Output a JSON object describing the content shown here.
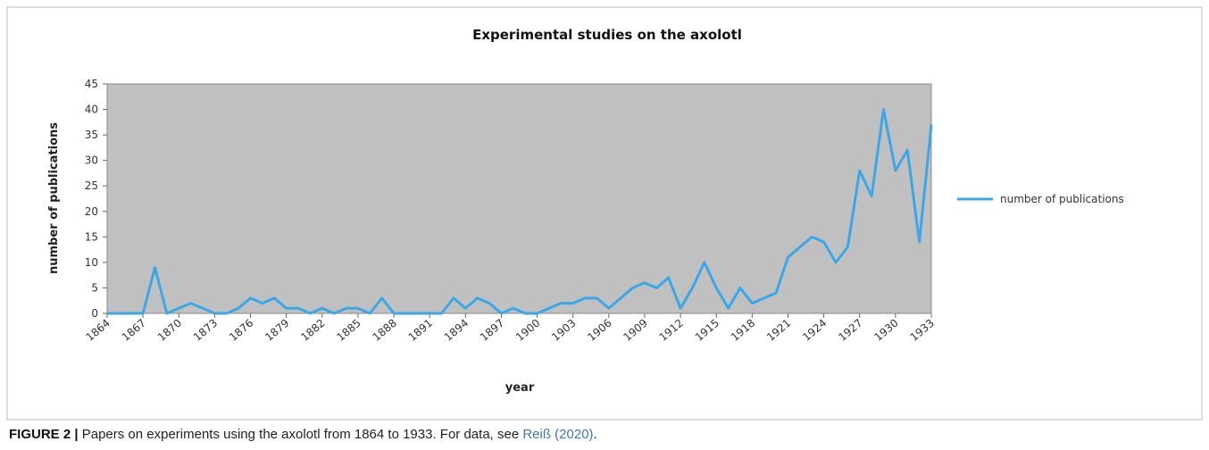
{
  "chart_data": {
    "type": "line",
    "title": "Experimental studies on the axolotl",
    "x_label": "year",
    "y_label": "number of publications",
    "x": [
      1864,
      1865,
      1866,
      1867,
      1868,
      1869,
      1870,
      1871,
      1872,
      1873,
      1874,
      1875,
      1876,
      1877,
      1878,
      1879,
      1880,
      1881,
      1882,
      1883,
      1884,
      1885,
      1886,
      1887,
      1888,
      1889,
      1890,
      1891,
      1892,
      1893,
      1894,
      1895,
      1896,
      1897,
      1898,
      1899,
      1900,
      1901,
      1902,
      1903,
      1904,
      1905,
      1906,
      1907,
      1908,
      1909,
      1910,
      1911,
      1912,
      1913,
      1914,
      1915,
      1916,
      1917,
      1918,
      1919,
      1920,
      1921,
      1922,
      1923,
      1924,
      1925,
      1926,
      1927,
      1928,
      1929,
      1930,
      1931,
      1932,
      1933
    ],
    "series": [
      {
        "name": "number of publications",
        "color": "#3aa8e8",
        "values": [
          0,
          0,
          0,
          0,
          9,
          0,
          1,
          2,
          1,
          0,
          0,
          1,
          3,
          2,
          3,
          1,
          1,
          0,
          1,
          0,
          1,
          1,
          0,
          3,
          0,
          0,
          0,
          0,
          0,
          3,
          1,
          3,
          2,
          0,
          1,
          0,
          0,
          1,
          2,
          2,
          3,
          3,
          1,
          3,
          5,
          6,
          5,
          7,
          1,
          5,
          10,
          5,
          1,
          5,
          2,
          3,
          4,
          11,
          13,
          15,
          14,
          10,
          13,
          28,
          23,
          40,
          28,
          32,
          14,
          37
        ]
      }
    ],
    "xlim": [
      1864,
      1933
    ],
    "xticks": [
      1864,
      1867,
      1870,
      1873,
      1876,
      1879,
      1882,
      1885,
      1888,
      1891,
      1894,
      1897,
      1900,
      1903,
      1906,
      1909,
      1912,
      1915,
      1918,
      1921,
      1924,
      1927,
      1930,
      1933
    ],
    "ylim": [
      0,
      45
    ],
    "yticks": [
      0,
      5,
      10,
      15,
      20,
      25,
      30,
      35,
      40,
      45
    ],
    "grid": false,
    "legend": "right",
    "plot_background": "#c0c0c0"
  },
  "caption": {
    "label": "FIGURE 2 |",
    "text": "Papers on experiments using the axolotl from 1864 to 1933. For data, see ",
    "link": "Reiß (2020)",
    "end": "."
  }
}
